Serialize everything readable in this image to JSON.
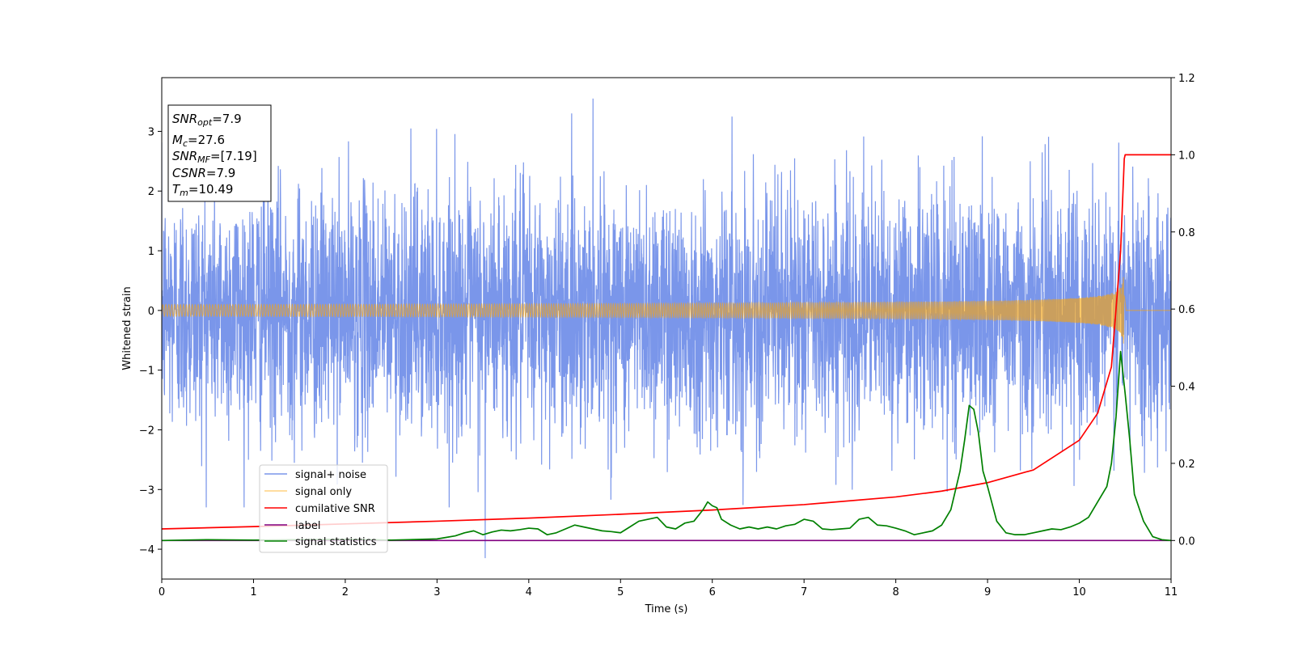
{
  "chart_data": {
    "type": "line",
    "xlabel": "Time (s)",
    "ylabel": "Whitened strain",
    "xlim": [
      0,
      11
    ],
    "ylim_left": [
      -4.5,
      3.9
    ],
    "ylim_right": [
      -0.1,
      1.2
    ],
    "x_ticks": [
      0,
      1,
      2,
      3,
      4,
      5,
      6,
      7,
      8,
      9,
      10,
      11
    ],
    "y_left_ticks": [
      -4,
      -3,
      -2,
      -1,
      0,
      1,
      2,
      3
    ],
    "y_left_tick_labels": [
      "−4",
      "−3",
      "−2",
      "−1",
      "0",
      "1",
      "2",
      "3"
    ],
    "y_right_ticks": [
      0.0,
      0.2,
      0.4,
      0.6,
      0.8,
      1.0,
      1.2
    ],
    "y_right_tick_labels": [
      "0.0",
      "0.2",
      "0.4",
      "0.6",
      "0.8",
      "1.0",
      "1.2"
    ],
    "grid": false,
    "legend_position": "lower-left",
    "info_box": {
      "snr_opt": {
        "sym": "SNR",
        "sub": "opt",
        "val": "=7.9"
      },
      "mc": {
        "sym": "M",
        "sub": "c",
        "val": "=27.6"
      },
      "snr_mf": {
        "sym": "SNR",
        "sub": "MF",
        "val": "=[7.19]"
      },
      "csnr": {
        "sym": "CSNR",
        "sub": "",
        "val": "=7.9"
      },
      "tm": {
        "sym": "T",
        "sub": "m",
        "val": "=10.49"
      }
    },
    "series": [
      {
        "name": "signal+ noise",
        "axis": "left",
        "color": "#4169e1",
        "style": "noisy-strain",
        "typical_amplitude": 1.3,
        "min_value": -4.15,
        "max_value": 3.55
      },
      {
        "name": "signal only",
        "axis": "left",
        "color": "#ffa500",
        "style": "chirp",
        "merger_time": 10.49,
        "peak_amplitude": 0.7
      },
      {
        "name": "cumilative SNR",
        "axis": "right",
        "color": "#ff0000",
        "x": [
          0,
          1,
          2,
          3,
          4,
          5,
          6,
          7,
          8,
          8.5,
          9,
          9.5,
          10,
          10.2,
          10.35,
          10.45,
          10.49,
          10.5,
          11
        ],
        "y": [
          0.03,
          0.036,
          0.043,
          0.05,
          0.058,
          0.068,
          0.079,
          0.093,
          0.113,
          0.128,
          0.15,
          0.183,
          0.26,
          0.33,
          0.45,
          0.75,
          0.99,
          1.0,
          1.0
        ]
      },
      {
        "name": "label",
        "axis": "right",
        "color": "#800080",
        "x": [
          0,
          11
        ],
        "y": [
          0.0,
          0.0
        ]
      },
      {
        "name": "signal statistics",
        "axis": "right",
        "color": "#008000",
        "x": [
          0,
          0.5,
          1,
          1.5,
          2,
          2.5,
          3,
          3.1,
          3.2,
          3.3,
          3.4,
          3.5,
          3.6,
          3.7,
          3.8,
          3.9,
          4.0,
          4.1,
          4.2,
          4.3,
          4.4,
          4.5,
          4.6,
          4.7,
          4.8,
          4.9,
          5.0,
          5.1,
          5.2,
          5.3,
          5.4,
          5.5,
          5.6,
          5.7,
          5.8,
          5.9,
          5.95,
          6.0,
          6.05,
          6.1,
          6.2,
          6.3,
          6.4,
          6.5,
          6.6,
          6.7,
          6.8,
          6.9,
          7.0,
          7.1,
          7.2,
          7.3,
          7.4,
          7.5,
          7.6,
          7.7,
          7.8,
          7.9,
          8.0,
          8.1,
          8.2,
          8.3,
          8.4,
          8.5,
          8.6,
          8.7,
          8.75,
          8.8,
          8.85,
          8.9,
          8.95,
          9.0,
          9.1,
          9.2,
          9.3,
          9.4,
          9.5,
          9.6,
          9.7,
          9.8,
          9.9,
          10.0,
          10.1,
          10.2,
          10.3,
          10.35,
          10.4,
          10.45,
          10.5,
          10.55,
          10.6,
          10.7,
          10.8,
          10.9,
          11.0
        ],
        "y": [
          0.0,
          0.002,
          0.001,
          0.002,
          0.003,
          0.001,
          0.004,
          0.008,
          0.012,
          0.02,
          0.025,
          0.015,
          0.022,
          0.027,
          0.025,
          0.028,
          0.032,
          0.03,
          0.015,
          0.02,
          0.03,
          0.04,
          0.035,
          0.03,
          0.025,
          0.023,
          0.02,
          0.035,
          0.05,
          0.055,
          0.06,
          0.035,
          0.03,
          0.045,
          0.05,
          0.08,
          0.1,
          0.09,
          0.085,
          0.055,
          0.04,
          0.03,
          0.035,
          0.03,
          0.035,
          0.03,
          0.038,
          0.042,
          0.055,
          0.05,
          0.03,
          0.028,
          0.03,
          0.032,
          0.055,
          0.06,
          0.04,
          0.038,
          0.032,
          0.025,
          0.015,
          0.02,
          0.025,
          0.04,
          0.08,
          0.18,
          0.26,
          0.35,
          0.34,
          0.28,
          0.18,
          0.14,
          0.05,
          0.02,
          0.015,
          0.015,
          0.02,
          0.025,
          0.03,
          0.028,
          0.035,
          0.045,
          0.06,
          0.1,
          0.14,
          0.2,
          0.32,
          0.49,
          0.38,
          0.26,
          0.12,
          0.05,
          0.01,
          0.002,
          0.0
        ]
      }
    ]
  }
}
